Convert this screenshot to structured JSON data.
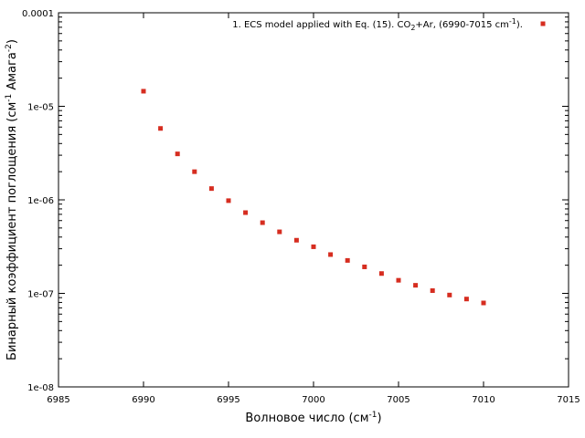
{
  "chart_data": {
    "type": "scatter",
    "xlabel": "Волновое число (см",
    "xlabel_sup": "-1",
    "xlabel_tail": ")",
    "ylabel": "Бинарный коэффициент поглощения (см",
    "ylabel_sup1": "-1",
    "ylabel_mid": " Амага",
    "ylabel_sup2": "-2",
    "ylabel_tail": ")",
    "xlim": [
      6985,
      7015
    ],
    "ylim": [
      1e-08,
      0.0001
    ],
    "yscale": "log",
    "grid": false,
    "legend_position": "top-right",
    "x_ticks": [
      "6985",
      "6990",
      "6995",
      "7000",
      "7005",
      "7010",
      "7015"
    ],
    "y_ticks": [
      "1e-08",
      "1e-07",
      "1e-06",
      "1e-05",
      "0.0001"
    ],
    "series": [
      {
        "legend_pre": "1. ECS model applied with Eq. (15). CO",
        "legend_sub": "2",
        "legend_mid": "+Ar, (6990-7015 cm",
        "legend_sup": "-1",
        "legend_post": ").",
        "color": "#d62d20",
        "marker": "square",
        "x": [
          6990,
          6991,
          6992,
          6993,
          6994,
          6995,
          6996,
          6997,
          6998,
          6999,
          7000,
          7001,
          7002,
          7003,
          7004,
          7005,
          7006,
          7007,
          7008,
          7009,
          7010
        ],
        "y": [
          1.45e-05,
          5.8e-06,
          3.1e-06,
          2e-06,
          1.32e-06,
          9.8e-07,
          7.3e-07,
          5.7e-07,
          4.55e-07,
          3.7e-07,
          3.15e-07,
          2.6e-07,
          2.25e-07,
          1.92e-07,
          1.63e-07,
          1.38e-07,
          1.22e-07,
          1.07e-07,
          9.6e-08,
          8.7e-08,
          7.9e-08
        ]
      }
    ]
  }
}
